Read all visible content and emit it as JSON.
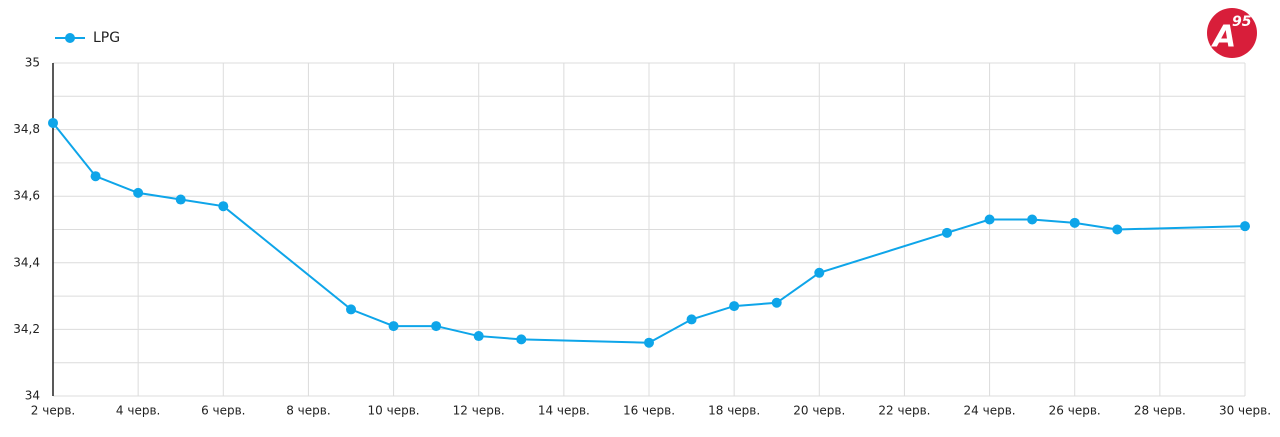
{
  "chart_data": {
    "type": "line",
    "legend_position": "top-left",
    "logo": {
      "letter": "A",
      "number": "95"
    },
    "x": [
      2,
      3,
      4,
      5,
      6,
      9,
      10,
      11,
      12,
      13,
      16,
      17,
      18,
      19,
      20,
      23,
      24,
      25,
      26,
      27,
      30
    ],
    "series": [
      {
        "name": "LPG",
        "color": "#0ea5e9",
        "values": [
          34.82,
          34.66,
          34.61,
          34.59,
          34.57,
          34.26,
          34.21,
          34.21,
          34.18,
          34.17,
          34.16,
          34.23,
          34.27,
          34.28,
          34.37,
          34.49,
          34.53,
          34.53,
          34.52,
          34.5,
          34.51
        ]
      }
    ],
    "xlim": [
      2,
      30
    ],
    "xticks": [
      {
        "value": 2,
        "label": "2 черв."
      },
      {
        "value": 4,
        "label": "4 черв."
      },
      {
        "value": 6,
        "label": "6 черв."
      },
      {
        "value": 8,
        "label": "8 черв."
      },
      {
        "value": 10,
        "label": "10 черв."
      },
      {
        "value": 12,
        "label": "12 черв."
      },
      {
        "value": 14,
        "label": "14 черв."
      },
      {
        "value": 16,
        "label": "16 черв."
      },
      {
        "value": 18,
        "label": "18 черв."
      },
      {
        "value": 20,
        "label": "20 черв."
      },
      {
        "value": 22,
        "label": "22 черв."
      },
      {
        "value": 24,
        "label": "24 черв."
      },
      {
        "value": 26,
        "label": "26 черв."
      },
      {
        "value": 28,
        "label": "28 черв."
      },
      {
        "value": 30,
        "label": "30 черв."
      }
    ],
    "ylim": [
      34,
      35
    ],
    "yticks": [
      34,
      {
        "value": 34.2,
        "label": "34,2"
      },
      {
        "value": 34.4,
        "label": "34,4"
      },
      {
        "value": 34.6,
        "label": "34,6"
      },
      {
        "value": 34.8,
        "label": "34,8"
      },
      35
    ],
    "grid": true,
    "minor_grid": true
  }
}
